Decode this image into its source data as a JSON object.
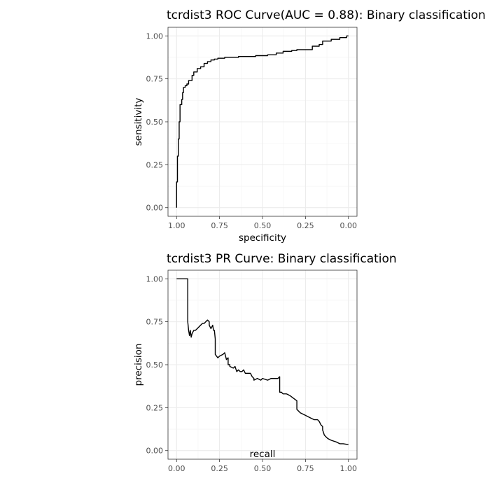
{
  "chart_data": [
    {
      "type": "line",
      "title": "tcrdist3 ROC Curve(AUC = 0.88): Binary classification",
      "xlabel": "specificity",
      "ylabel": "sensitivity",
      "xlim": [
        1.0,
        0.0
      ],
      "ylim": [
        0.0,
        1.0
      ],
      "x_reversed": true,
      "grid": true,
      "x_ticks": [
        1.0,
        0.75,
        0.5,
        0.25,
        0.0
      ],
      "x_tick_labels": [
        "1.00",
        "0.75",
        "0.50",
        "0.25",
        "0.00"
      ],
      "y_ticks": [
        0.0,
        0.25,
        0.5,
        0.75,
        1.0
      ],
      "y_tick_labels": [
        "0.00",
        "0.25",
        "0.50",
        "0.75",
        "1.00"
      ],
      "series": [
        {
          "x": [
            1.0,
            1.0,
            0.995,
            0.995,
            0.99,
            0.99,
            0.985,
            0.985,
            0.98,
            0.98,
            0.97,
            0.97,
            0.965,
            0.965,
            0.96,
            0.96,
            0.95,
            0.95,
            0.94,
            0.94,
            0.93,
            0.93,
            0.91,
            0.91,
            0.9,
            0.9,
            0.88,
            0.88,
            0.86,
            0.86,
            0.84,
            0.84,
            0.82,
            0.82,
            0.8,
            0.8,
            0.78,
            0.78,
            0.76,
            0.76,
            0.74,
            0.74,
            0.72,
            0.72,
            0.7,
            0.7,
            0.68,
            0.68,
            0.64,
            0.64,
            0.6,
            0.6,
            0.54,
            0.54,
            0.47,
            0.47,
            0.42,
            0.42,
            0.38,
            0.38,
            0.33,
            0.33,
            0.3,
            0.3,
            0.21,
            0.21,
            0.17,
            0.17,
            0.15,
            0.15,
            0.1,
            0.1,
            0.05,
            0.05,
            0.01,
            0.01,
            0.0
          ],
          "y": [
            0.0,
            0.15,
            0.15,
            0.3,
            0.3,
            0.4,
            0.4,
            0.5,
            0.5,
            0.6,
            0.6,
            0.63,
            0.63,
            0.67,
            0.67,
            0.7,
            0.7,
            0.71,
            0.71,
            0.72,
            0.72,
            0.74,
            0.74,
            0.77,
            0.77,
            0.79,
            0.79,
            0.81,
            0.81,
            0.82,
            0.82,
            0.84,
            0.84,
            0.85,
            0.85,
            0.86,
            0.86,
            0.865,
            0.865,
            0.87,
            0.87,
            0.87,
            0.87,
            0.875,
            0.875,
            0.875,
            0.875,
            0.875,
            0.875,
            0.88,
            0.88,
            0.88,
            0.88,
            0.885,
            0.885,
            0.89,
            0.89,
            0.9,
            0.9,
            0.91,
            0.91,
            0.915,
            0.915,
            0.92,
            0.92,
            0.94,
            0.94,
            0.95,
            0.95,
            0.97,
            0.97,
            0.98,
            0.98,
            0.99,
            0.99,
            1.0,
            1.0
          ]
        }
      ]
    },
    {
      "type": "line",
      "title": "tcrdist3 PR Curve: Binary classification",
      "xlabel": "recall",
      "ylabel": "precision",
      "xlim": [
        0.0,
        1.0
      ],
      "ylim": [
        0.0,
        1.0
      ],
      "grid": true,
      "x_ticks": [
        0.0,
        0.25,
        0.5,
        0.75,
        1.0
      ],
      "x_tick_labels": [
        "0.00",
        "0.25",
        "0.50",
        "0.75",
        "1.00"
      ],
      "y_ticks": [
        0.0,
        0.25,
        0.5,
        0.75,
        1.0
      ],
      "y_tick_labels": [
        "0.00",
        "0.25",
        "0.50",
        "0.75",
        "1.00"
      ],
      "series": [
        {
          "x": [
            0.0,
            0.065,
            0.065,
            0.07,
            0.075,
            0.08,
            0.085,
            0.09,
            0.095,
            0.1,
            0.11,
            0.12,
            0.13,
            0.14,
            0.15,
            0.16,
            0.17,
            0.18,
            0.19,
            0.19,
            0.2,
            0.21,
            0.215,
            0.22,
            0.225,
            0.225,
            0.24,
            0.25,
            0.27,
            0.28,
            0.29,
            0.3,
            0.3,
            0.31,
            0.31,
            0.33,
            0.34,
            0.35,
            0.36,
            0.37,
            0.38,
            0.39,
            0.4,
            0.43,
            0.44,
            0.45,
            0.45,
            0.47,
            0.49,
            0.5,
            0.53,
            0.55,
            0.57,
            0.59,
            0.6,
            0.6,
            0.61,
            0.62,
            0.64,
            0.66,
            0.7,
            0.7,
            0.72,
            0.74,
            0.76,
            0.78,
            0.8,
            0.82,
            0.83,
            0.84,
            0.85,
            0.85,
            0.86,
            0.87,
            0.88,
            0.9,
            0.93,
            0.95,
            0.97,
            1.0
          ],
          "y": [
            1.0,
            1.0,
            0.75,
            0.7,
            0.67,
            0.7,
            0.66,
            0.68,
            0.69,
            0.7,
            0.7,
            0.71,
            0.72,
            0.73,
            0.74,
            0.74,
            0.75,
            0.76,
            0.75,
            0.73,
            0.71,
            0.73,
            0.7,
            0.7,
            0.65,
            0.56,
            0.54,
            0.55,
            0.56,
            0.57,
            0.53,
            0.54,
            0.5,
            0.5,
            0.49,
            0.48,
            0.49,
            0.46,
            0.47,
            0.46,
            0.46,
            0.47,
            0.45,
            0.45,
            0.43,
            0.42,
            0.41,
            0.42,
            0.41,
            0.42,
            0.41,
            0.42,
            0.42,
            0.42,
            0.43,
            0.34,
            0.34,
            0.33,
            0.33,
            0.32,
            0.29,
            0.24,
            0.22,
            0.21,
            0.2,
            0.19,
            0.18,
            0.18,
            0.17,
            0.15,
            0.14,
            0.12,
            0.09,
            0.08,
            0.07,
            0.06,
            0.05,
            0.04,
            0.04,
            0.035
          ]
        }
      ]
    }
  ]
}
